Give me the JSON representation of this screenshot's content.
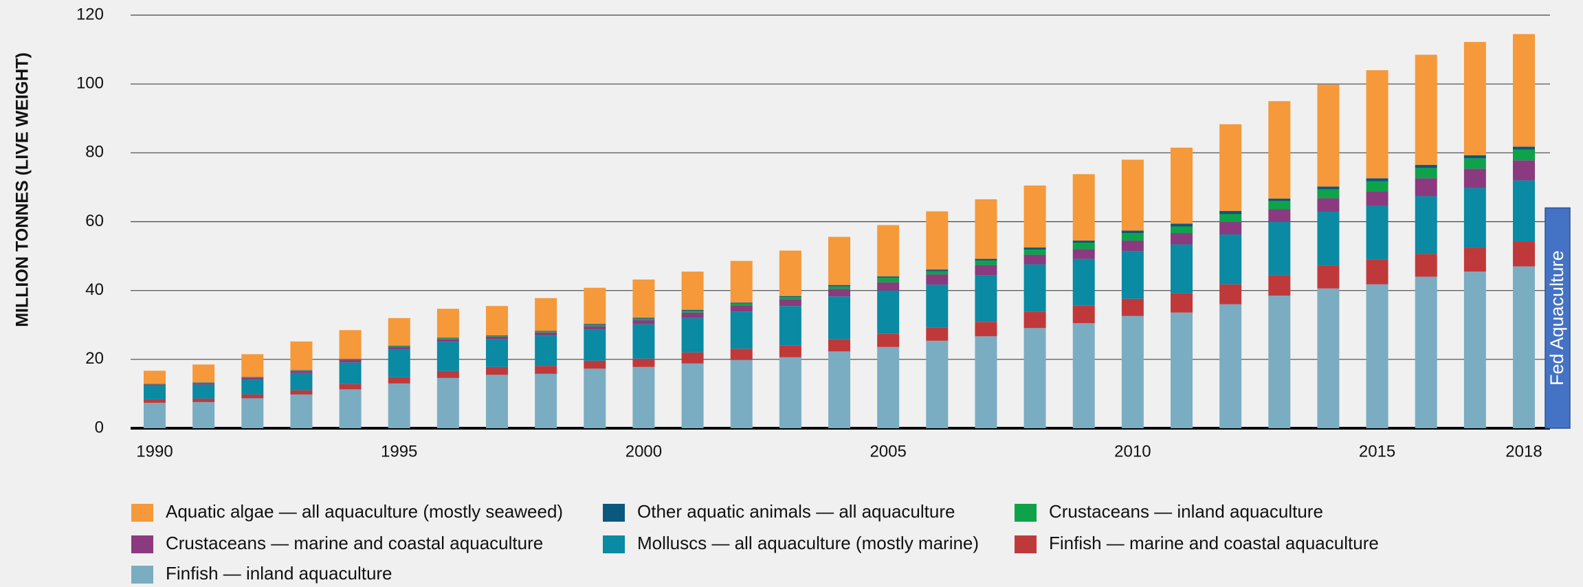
{
  "chart_data": {
    "type": "stacked_bar",
    "y_label": "MILLION TONNES (LIVE WEIGHT)",
    "x": [
      1990,
      1991,
      1992,
      1993,
      1994,
      1995,
      1996,
      1997,
      1998,
      1999,
      2000,
      2001,
      2002,
      2003,
      2004,
      2005,
      2006,
      2007,
      2008,
      2009,
      2010,
      2011,
      2012,
      2013,
      2014,
      2015,
      2016,
      2017,
      2018
    ],
    "xticks": [
      1990,
      1995,
      2000,
      2005,
      2010,
      2015,
      2018
    ],
    "ylim": [
      0,
      120
    ],
    "yticks": [
      0,
      20,
      40,
      60,
      80,
      100,
      120
    ],
    "grid": true,
    "series": [
      {
        "name": "Aquatic algae — all aquaculture (mostly seaweed)",
        "color": "#f5993a",
        "values": [
          3.8,
          5.2,
          6.6,
          8.3,
          8.4,
          8,
          8.4,
          8.5,
          9.5,
          10.5,
          11.1,
          11.1,
          12.1,
          13.2,
          14,
          14.9,
          16.9,
          17.3,
          18,
          19.3,
          20.6,
          22.1,
          25.2,
          28.3,
          29.6,
          31.4,
          32,
          32.9,
          32.7
        ]
      },
      {
        "name": "Other aquatic animals — all aquaculture",
        "color": "#0b587f",
        "values": [
          0.1,
          0.1,
          0.1,
          0.1,
          0.1,
          0.2,
          0.2,
          0.2,
          0.2,
          0.3,
          0.3,
          0.3,
          0.3,
          0.3,
          0.4,
          0.4,
          0.5,
          0.5,
          0.6,
          0.6,
          0.7,
          0.8,
          0.9,
          0.7,
          0.8,
          0.9,
          0.9,
          0.9,
          0.9
        ]
      },
      {
        "name": "Crustaceans — inland aquaculture",
        "color": "#0ea34a",
        "values": [
          0.1,
          0.1,
          0.1,
          0.1,
          0.1,
          0.2,
          0.2,
          0.2,
          0.3,
          0.4,
          0.4,
          0.5,
          0.5,
          0.6,
          0.7,
          1.3,
          0.9,
          1.3,
          1.5,
          1.9,
          2.2,
          1.9,
          2.3,
          2.4,
          2.6,
          2.9,
          3,
          3,
          3.1
        ]
      },
      {
        "name": "Crustaceans — marine and coastal aquaculture",
        "color": "#8b3a7f",
        "values": [
          0.4,
          0.4,
          0.6,
          0.7,
          0.8,
          0.8,
          0.8,
          0.8,
          0.9,
          1,
          1.2,
          1.6,
          1.8,
          2,
          2.2,
          2.4,
          3,
          3,
          2.8,
          2.8,
          3,
          3.3,
          3.6,
          3.7,
          3.9,
          4.2,
          5.2,
          5.6,
          5.8
        ]
      },
      {
        "name": "Molluscs — all aquaculture (mostly marine)",
        "color": "#0a8aa3",
        "values": [
          3.9,
          4.1,
          4.3,
          5,
          6.3,
          8,
          8.5,
          8,
          8.8,
          9,
          10,
          10,
          10.8,
          11.5,
          12.4,
          12.6,
          12.4,
          13.5,
          13.7,
          13.6,
          13.9,
          14.2,
          14.5,
          15.4,
          15.6,
          15.6,
          16.8,
          17.3,
          17.7
        ]
      },
      {
        "name": "Finfish — marine and coastal aquaculture",
        "color": "#c0393a",
        "values": [
          1,
          1,
          1.1,
          1.2,
          1.5,
          1.8,
          2,
          2.3,
          2.3,
          2.3,
          2.4,
          3.2,
          3.3,
          3.4,
          3.6,
          3.8,
          3.9,
          4.2,
          4.8,
          5.1,
          5,
          5.6,
          5.8,
          6,
          6.7,
          7.2,
          6.6,
          7,
          7.3
        ]
      },
      {
        "name": "Finfish — inland aquaculture",
        "color": "#7aadc2",
        "values": [
          7.4,
          7.6,
          8.7,
          9.8,
          11.3,
          13,
          14.6,
          15.5,
          15.8,
          17.3,
          17.8,
          18.8,
          19.8,
          20.6,
          22.3,
          23.6,
          25.4,
          26.7,
          29.1,
          30.5,
          32.6,
          33.6,
          36,
          38.5,
          40.6,
          41.8,
          44,
          45.5,
          47
        ]
      }
    ],
    "annotation": {
      "text": "Fed Aquaculture",
      "color": "#4472c4",
      "ylim": [
        0,
        64
      ]
    }
  }
}
